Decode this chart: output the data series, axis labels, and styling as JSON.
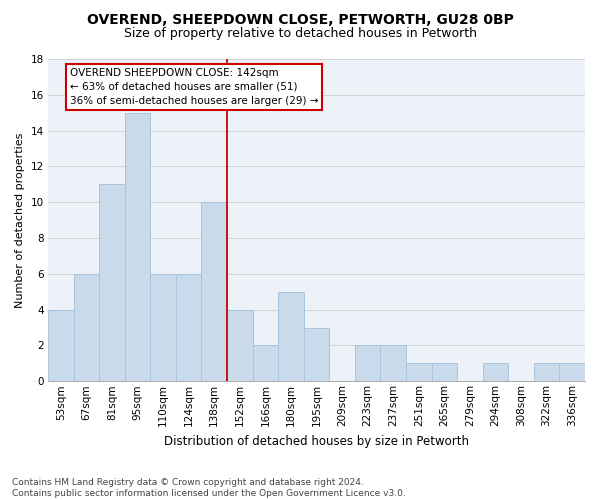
{
  "title": "OVEREND, SHEEPDOWN CLOSE, PETWORTH, GU28 0BP",
  "subtitle": "Size of property relative to detached houses in Petworth",
  "xlabel": "Distribution of detached houses by size in Petworth",
  "ylabel": "Number of detached properties",
  "bins": [
    "53sqm",
    "67sqm",
    "81sqm",
    "95sqm",
    "110sqm",
    "124sqm",
    "138sqm",
    "152sqm",
    "166sqm",
    "180sqm",
    "195sqm",
    "209sqm",
    "223sqm",
    "237sqm",
    "251sqm",
    "265sqm",
    "279sqm",
    "294sqm",
    "308sqm",
    "322sqm",
    "336sqm"
  ],
  "values": [
    4,
    6,
    11,
    15,
    6,
    6,
    10,
    4,
    2,
    5,
    3,
    0,
    2,
    2,
    1,
    1,
    0,
    1,
    0,
    1,
    1
  ],
  "bar_color": "#c9daea",
  "bar_edgecolor": "#aac4df",
  "vline_color": "#cc0000",
  "annotation_text": "OVEREND SHEEPDOWN CLOSE: 142sqm\n← 63% of detached houses are smaller (51)\n36% of semi-detached houses are larger (29) →",
  "annotation_box_facecolor": "#ffffff",
  "annotation_box_edgecolor": "#cc0000",
  "ylim": [
    0,
    18
  ],
  "yticks": [
    0,
    2,
    4,
    6,
    8,
    10,
    12,
    14,
    16,
    18
  ],
  "grid_color": "#cccccc",
  "plot_bg_color": "#edf2f9",
  "footer": "Contains HM Land Registry data © Crown copyright and database right 2024.\nContains public sector information licensed under the Open Government Licence v3.0.",
  "title_fontsize": 10,
  "subtitle_fontsize": 9,
  "xlabel_fontsize": 8.5,
  "ylabel_fontsize": 8,
  "tick_fontsize": 7.5,
  "annotation_fontsize": 7.5,
  "footer_fontsize": 6.5,
  "vline_bin_index": 6.5
}
